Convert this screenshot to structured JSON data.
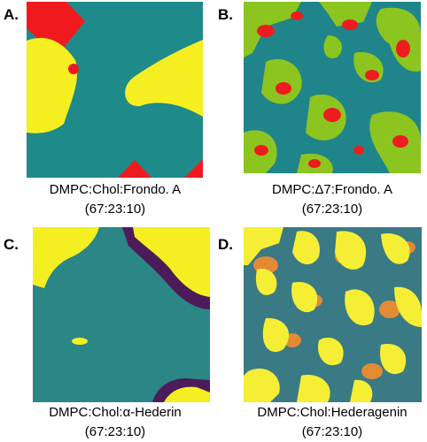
{
  "panels": [
    {
      "label": "A.",
      "caption": "DMPC:Chol:Frondo. A",
      "ratio": "(67:23:10)"
    },
    {
      "label": "B.",
      "caption": "DMPC:Δ7:Frondo. A",
      "ratio": "(67:23:10)"
    },
    {
      "label": "C.",
      "caption": "DMPC:Chol:α-Hederin",
      "ratio": "(67:23:10)"
    },
    {
      "label": "D.",
      "caption": "DMPC:Chol:Hederagenin",
      "ratio": "(67:23:10)"
    }
  ]
}
